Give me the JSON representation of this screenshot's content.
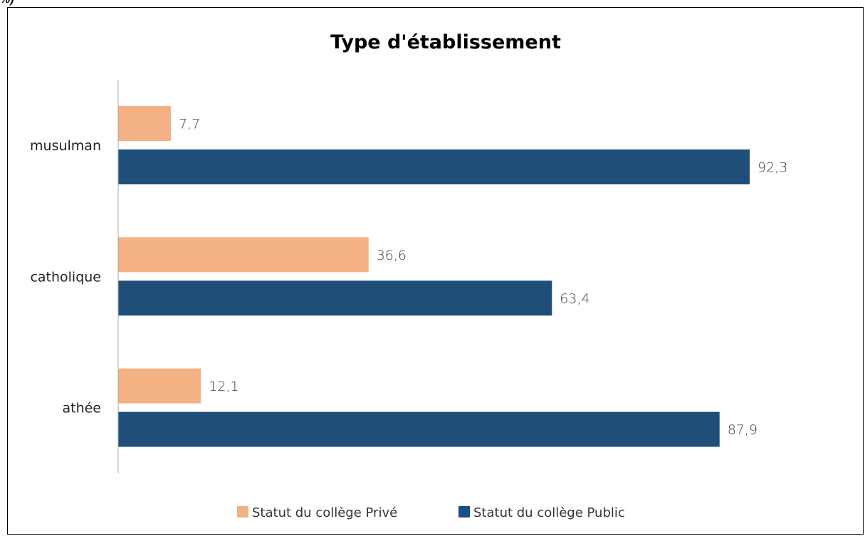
{
  "corner_fragment": "%)",
  "chart_data": {
    "type": "bar",
    "orientation": "horizontal",
    "title": "Type d'établissement",
    "xlabel": "",
    "ylabel": "",
    "categories": [
      "musulman",
      "catholique",
      "athée"
    ],
    "series": [
      {
        "name": "Statut du collège Privé",
        "color": "#F4B183",
        "values": [
          7.7,
          36.6,
          12.1
        ],
        "labels": [
          "7,7",
          "36,6",
          "12,1"
        ]
      },
      {
        "name": "Statut du collège Public",
        "color": "#1F4E79",
        "values": [
          92.3,
          63.4,
          87.9
        ],
        "labels": [
          "92,3",
          "63,4",
          "87,9"
        ]
      }
    ],
    "xlim": [
      0,
      100
    ],
    "grid": false,
    "legend_position": "bottom",
    "axis_color": "#A6A6A6"
  }
}
